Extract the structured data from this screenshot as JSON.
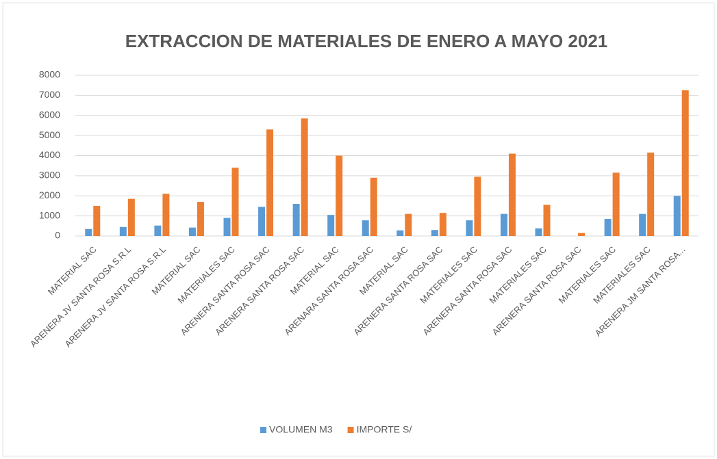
{
  "chart_data": {
    "type": "bar",
    "title": "EXTRACCION DE MATERIALES DE ENERO A MAYO 2021",
    "categories": [
      "MATERIAL SAC",
      "ARENERA JV SANTA ROSA S.R.L",
      "ARENERA JV SANTA ROSA S.R.L",
      "MATERIAL SAC",
      "MATERIALES SAC",
      "ARENERA SANTA ROSA SAC",
      "ARENERA SANTA ROSA SAC",
      "MATERIAL SAC",
      "ARENARA SANTA ROSA SAC",
      "MATERIAL SAC",
      "ARENERA SANTA ROSA SAC",
      "MATERIALES SAC",
      "ARENERA SANTA ROSA SAC",
      "MATERIALES SAC",
      "ARENERA SANTA ROSA SAC",
      "MATERIALES SAC",
      "MATERIALES SAC",
      "ARENERA JM SANTA ROSA..."
    ],
    "series": [
      {
        "name": "VOLUMEN M3",
        "color": "#5b9bd5",
        "values": [
          350,
          450,
          520,
          420,
          900,
          1450,
          1600,
          1050,
          780,
          280,
          300,
          780,
          1100,
          380,
          0,
          850,
          1100,
          2000
        ]
      },
      {
        "name": "IMPORTE S/",
        "color": "#ed7d31",
        "values": [
          1500,
          1850,
          2100,
          1700,
          3400,
          5300,
          5850,
          4000,
          2900,
          1100,
          1150,
          2950,
          4100,
          1550,
          150,
          3150,
          4150,
          7250
        ]
      }
    ],
    "ylim": [
      0,
      8000
    ],
    "yticks": [
      0,
      1000,
      2000,
      3000,
      4000,
      5000,
      6000,
      7000,
      8000
    ],
    "grid": true,
    "legend": "bottom"
  }
}
